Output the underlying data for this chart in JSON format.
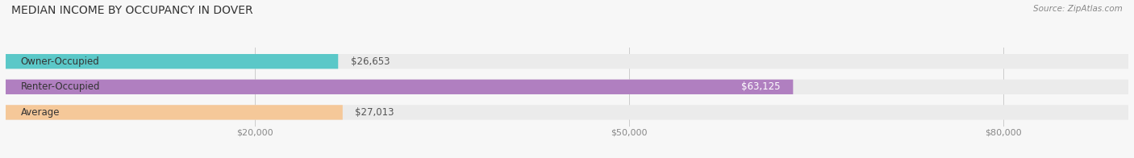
{
  "title": "MEDIAN INCOME BY OCCUPANCY IN DOVER",
  "source": "Source: ZipAtlas.com",
  "categories": [
    "Owner-Occupied",
    "Renter-Occupied",
    "Average"
  ],
  "values": [
    26653,
    63125,
    27013
  ],
  "bar_colors": [
    "#5bc8c8",
    "#b07fc0",
    "#f5c899"
  ],
  "bar_bg_color": "#ebebeb",
  "value_labels": [
    "$26,653",
    "$63,125",
    "$27,013"
  ],
  "value_label_inside": [
    false,
    true,
    false
  ],
  "xlim": [
    0,
    90000
  ],
  "xticks": [
    20000,
    50000,
    80000
  ],
  "xtick_labels": [
    "$20,000",
    "$50,000",
    "$80,000"
  ],
  "background_color": "#f7f7f7",
  "title_fontsize": 10,
  "source_fontsize": 7.5,
  "bar_height": 0.58,
  "value_fontsize": 8.5,
  "category_fontsize": 8.5
}
